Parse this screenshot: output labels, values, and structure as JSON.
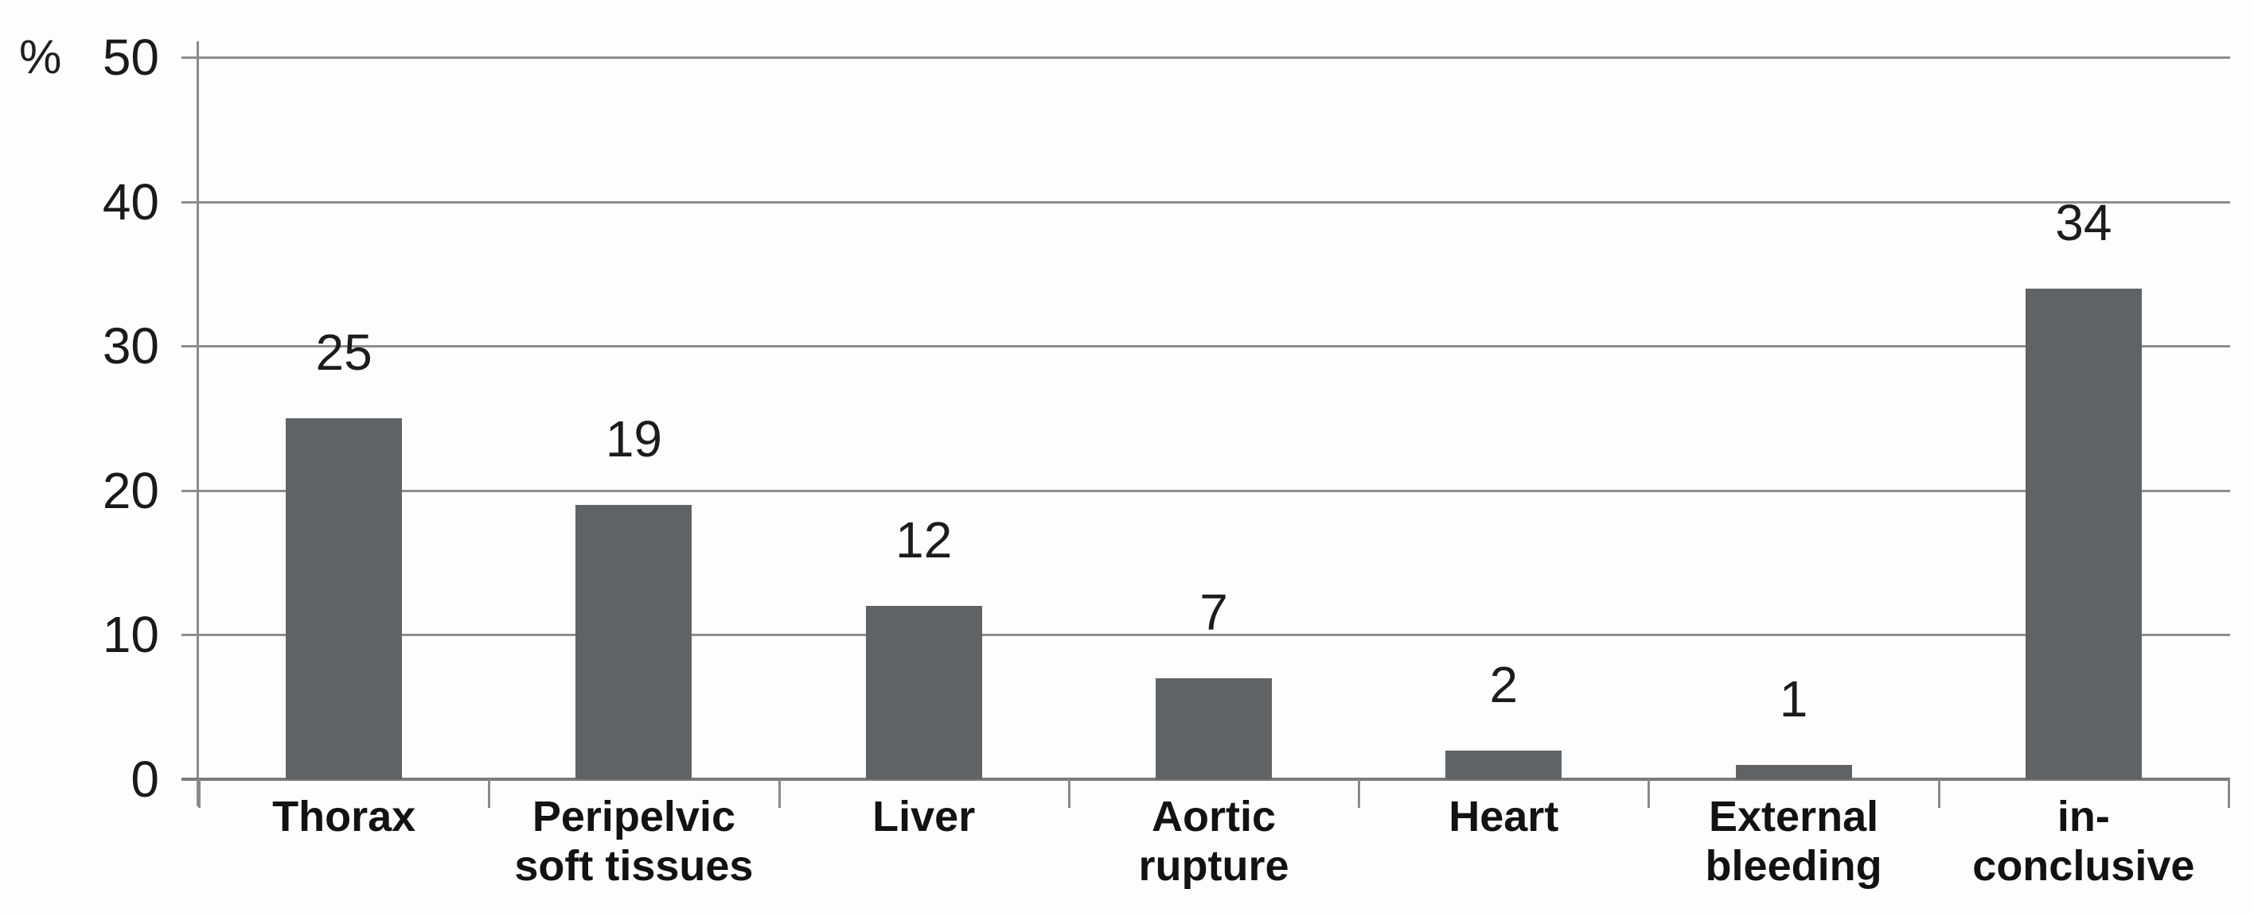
{
  "chart_data": {
    "type": "bar",
    "title": "",
    "xlabel": "",
    "ylabel": "%",
    "ylim": [
      0,
      50
    ],
    "grid": true,
    "y_ticks": [
      0,
      10,
      20,
      30,
      40,
      50
    ],
    "categories": [
      "Thorax",
      "Peripelvic\nsoft tissues",
      "Liver",
      "Aortic\nrupture",
      "Heart",
      "External\nbleeding",
      "in-\nconclusive"
    ],
    "values": [
      25,
      19,
      12,
      7,
      2,
      1,
      34
    ],
    "bar_color": "#606366",
    "gridline_color": "#8d8d8d",
    "axis_color": "#8a8a8a",
    "text_color": "#1a1a1a",
    "legend": null
  },
  "layout_note": ""
}
